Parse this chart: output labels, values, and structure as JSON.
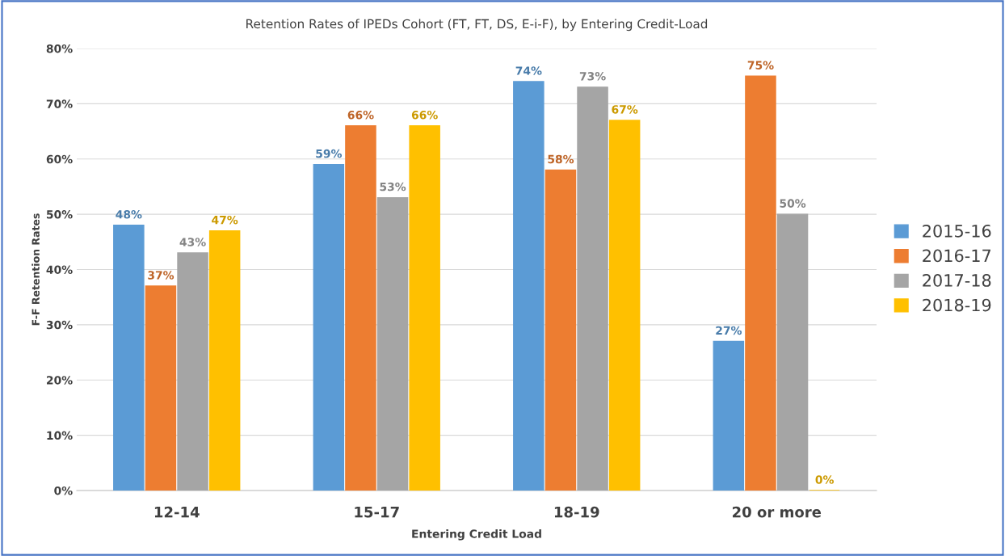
{
  "chart_data": {
    "type": "bar",
    "title": "Retention Rates of IPEDs Cohort (FT, FT, DS, E-i-F), by Entering Credit-Load",
    "xlabel": "Entering Credit Load",
    "ylabel": "F-F Retention Rates",
    "categories": [
      "12-14",
      "15-17",
      "18-19",
      "20 or more"
    ],
    "series": [
      {
        "name": "2015-16",
        "color": "#5b9bd5",
        "values": [
          48,
          59,
          74,
          27
        ],
        "value_labels": [
          "48%",
          "59%",
          "74%",
          "27%"
        ]
      },
      {
        "name": "2016-17",
        "color": "#ed7d31",
        "values": [
          37,
          66,
          58,
          75
        ],
        "value_labels": [
          "37%",
          "66%",
          "58%",
          "75%"
        ]
      },
      {
        "name": "2017-18",
        "color": "#a5a5a5",
        "values": [
          43,
          53,
          73,
          50
        ],
        "value_labels": [
          "43%",
          "53%",
          "73%",
          "50%"
        ]
      },
      {
        "name": "2018-19",
        "color": "#ffc000",
        "values": [
          47,
          66,
          67,
          0
        ],
        "value_labels": [
          "47%",
          "66%",
          "67%",
          "0%"
        ]
      }
    ],
    "ylim": [
      0,
      80
    ],
    "yticks": [
      {
        "value": 0,
        "label": "0%"
      },
      {
        "value": 10,
        "label": "10%"
      },
      {
        "value": 20,
        "label": "20%"
      },
      {
        "value": 30,
        "label": "30%"
      },
      {
        "value": 40,
        "label": "40%"
      },
      {
        "value": 50,
        "label": "50%"
      },
      {
        "value": 60,
        "label": "60%"
      },
      {
        "value": 70,
        "label": "70%"
      },
      {
        "value": 80,
        "label": "80%"
      }
    ],
    "grid": "y",
    "legend": "right"
  }
}
